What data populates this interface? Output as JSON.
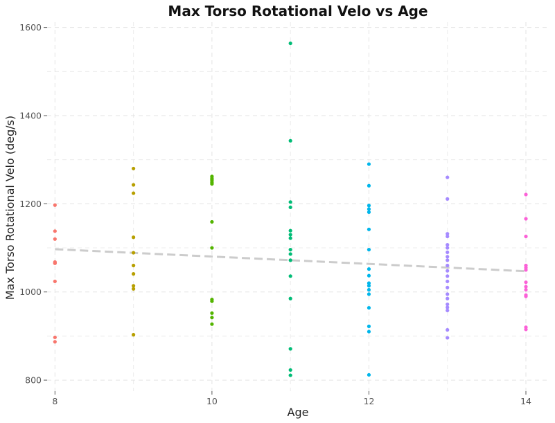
{
  "chart_data": {
    "type": "scatter",
    "title": "Max Torso Rotational Velo vs Age",
    "xlabel": "Age",
    "ylabel": "Max Torso Rotational Velo (deg/s)",
    "xlim": [
      7.9,
      14.3
    ],
    "ylim": [
      775,
      1612
    ],
    "xticks": [
      8,
      10,
      12,
      14
    ],
    "xminor": [
      9,
      11,
      13
    ],
    "yticks": [
      800,
      1000,
      1200,
      1400,
      1600
    ],
    "yminor": [
      900,
      1100,
      1300,
      1500
    ],
    "grid": true,
    "legend": "none",
    "series": [
      {
        "name": "8",
        "color": "#F8766D",
        "x": [
          8,
          8,
          8,
          8,
          8,
          8,
          8,
          8,
          8
        ],
        "y": [
          1197,
          1138,
          1120,
          1068,
          1065,
          1024,
          897,
          887,
          1066
        ]
      },
      {
        "name": "9",
        "color": "#B79F00",
        "x": [
          9,
          9,
          9,
          9,
          9,
          9,
          9,
          9,
          9,
          9
        ],
        "y": [
          1280,
          1243,
          1224,
          1124,
          1089,
          1041,
          1014,
          1007,
          903,
          1060
        ]
      },
      {
        "name": "10",
        "color": "#53B400",
        "x": [
          10,
          10,
          10,
          10,
          10,
          10,
          10,
          10,
          10,
          10,
          10,
          10,
          10
        ],
        "y": [
          1262,
          1258,
          1255,
          1245,
          1159,
          1100,
          983,
          979,
          952,
          942,
          927,
          1252,
          1248
        ]
      },
      {
        "name": "11",
        "color": "#00BC76",
        "x": [
          11,
          11,
          11,
          11,
          11,
          11,
          11,
          11,
          11,
          11,
          11,
          11,
          11,
          11,
          11
        ],
        "y": [
          1564,
          1343,
          1204,
          1192,
          1139,
          1130,
          1122,
          1096,
          1086,
          1072,
          1036,
          985,
          871,
          823,
          811
        ]
      },
      {
        "name": "12",
        "color": "#00B6EB",
        "x": [
          12,
          12,
          12,
          12,
          12,
          12,
          12,
          12,
          12,
          12,
          12,
          12,
          12,
          12,
          12,
          12,
          12
        ],
        "y": [
          1290,
          1241,
          1196,
          1188,
          1181,
          1142,
          1096,
          1052,
          1037,
          1020,
          1014,
          1005,
          995,
          964,
          922,
          910,
          812
        ]
      },
      {
        "name": "13",
        "color": "#A58AFF",
        "x": [
          13,
          13,
          13,
          13,
          13,
          13,
          13,
          13,
          13,
          13,
          13,
          13,
          13,
          13,
          13,
          13,
          13,
          13,
          13,
          13,
          13
        ],
        "y": [
          1260,
          1211,
          1132,
          1126,
          1107,
          1100,
          1090,
          1072,
          1060,
          1048,
          1036,
          1024,
          1010,
          995,
          985,
          972,
          965,
          958,
          914,
          896,
          1080
        ]
      },
      {
        "name": "14",
        "color": "#FB61D7",
        "x": [
          14,
          14,
          14,
          14,
          14,
          14,
          14,
          14,
          14,
          14,
          14,
          14,
          14
        ],
        "y": [
          1221,
          1166,
          1126,
          1060,
          1055,
          1050,
          1022,
          1012,
          1005,
          993,
          990,
          920,
          915
        ]
      }
    ],
    "trendline": {
      "x": [
        8,
        14
      ],
      "y": [
        1097,
        1047
      ]
    }
  }
}
